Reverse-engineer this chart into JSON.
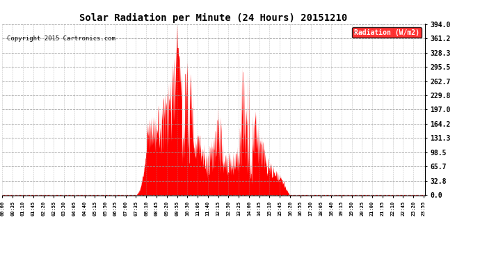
{
  "title": "Solar Radiation per Minute (24 Hours) 20151210",
  "copyright": "Copyright 2015 Cartronics.com",
  "legend_label": "Radiation (W/m2)",
  "bg_color": "#ffffff",
  "plot_bg_color": "#ffffff",
  "fill_color": "#ff0000",
  "line_color": "#ff0000",
  "grid_color": "#999999",
  "zero_line_color": "#ff0000",
  "ymax": 394.0,
  "yticks": [
    0.0,
    32.8,
    65.7,
    98.5,
    131.3,
    164.2,
    197.0,
    229.8,
    262.7,
    295.5,
    328.3,
    361.2,
    394.0
  ],
  "ytick_labels": [
    "0.0",
    "32.8",
    "65.7",
    "98.5",
    "131.3",
    "164.2",
    "197.0",
    "229.8",
    "262.7",
    "295.5",
    "328.3",
    "361.2",
    "394.0"
  ],
  "total_minutes": 1440,
  "xtick_step": 35,
  "sunrise_minute": 455,
  "sunset_minute": 975
}
